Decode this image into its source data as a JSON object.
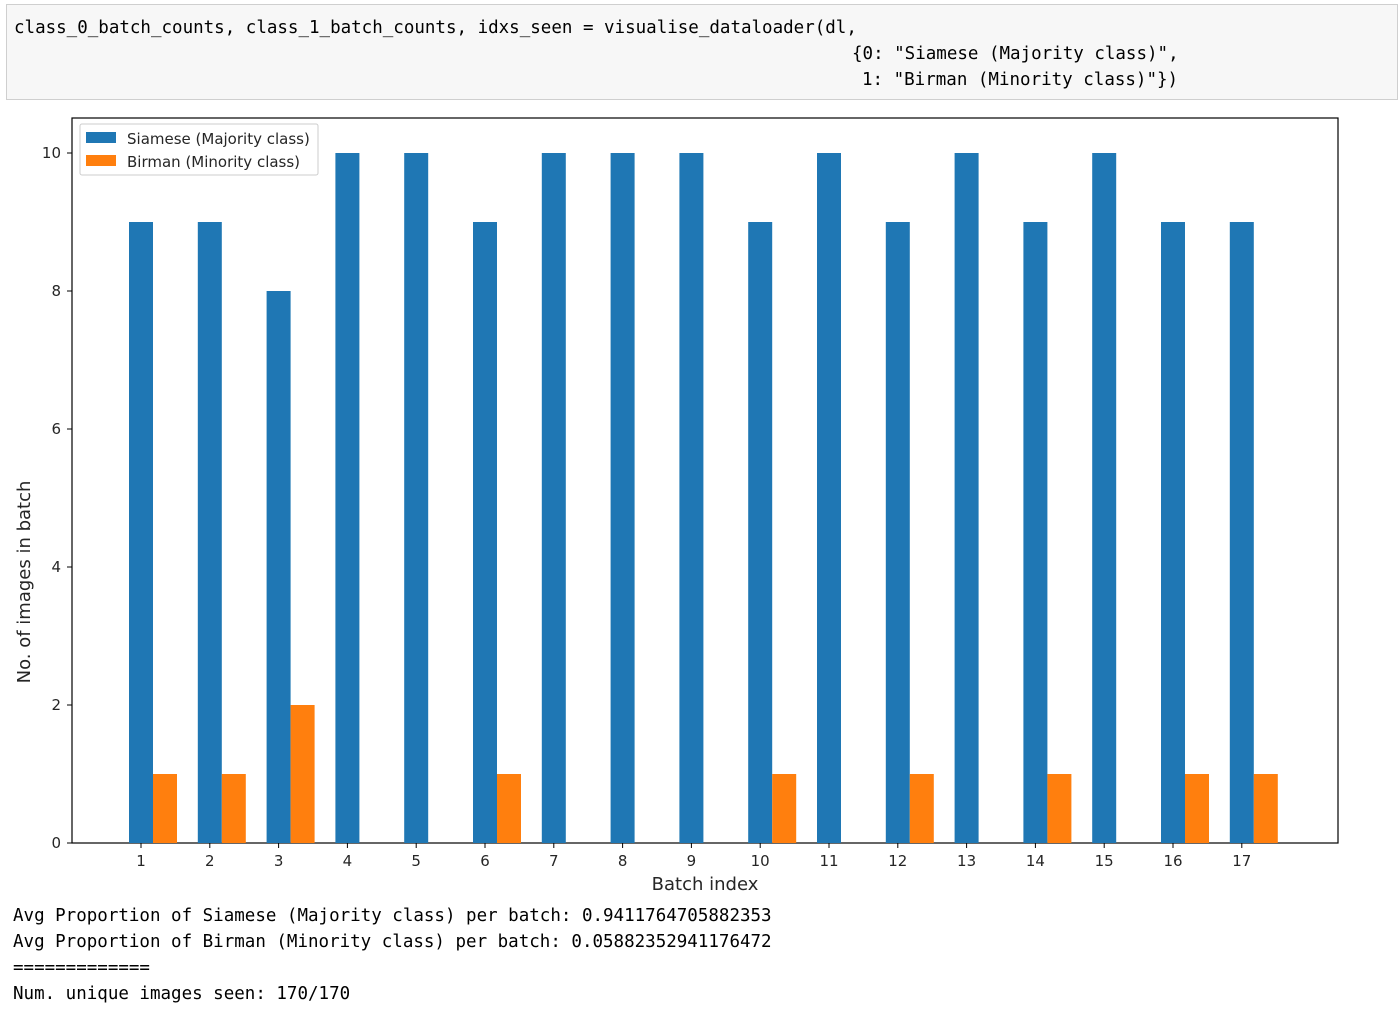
{
  "code_cell": {
    "line1": "class_0_batch_counts, class_1_batch_counts, idxs_seen = visualise_dataloader(dl,",
    "line2": "{0: \"Siamese (Majority class)\",",
    "line3": "1: \"Birman (Minority class)\"})"
  },
  "output": {
    "line1": "Avg Proportion of Siamese (Majority class) per batch: 0.9411764705882353",
    "line2": "Avg Proportion of Birman (Minority class) per batch: 0.05882352941176472",
    "line3": "=============",
    "line4": "Num. unique images seen: 170/170"
  },
  "colors": {
    "majority": "#1f77b4",
    "minority": "#ff7f0e"
  },
  "chart_data": {
    "type": "bar",
    "title": "",
    "xlabel": "Batch index",
    "ylabel": "No. of images in batch",
    "categories": [
      "1",
      "2",
      "3",
      "4",
      "5",
      "6",
      "7",
      "8",
      "9",
      "10",
      "11",
      "12",
      "13",
      "14",
      "15",
      "16",
      "17"
    ],
    "series": [
      {
        "name": "Siamese (Majority class)",
        "values": [
          9,
          9,
          8,
          10,
          10,
          9,
          10,
          10,
          10,
          9,
          10,
          9,
          10,
          9,
          10,
          9,
          9
        ]
      },
      {
        "name": "Birman (Minority class)",
        "values": [
          1,
          1,
          2,
          0,
          0,
          1,
          0,
          0,
          0,
          1,
          0,
          1,
          0,
          1,
          0,
          1,
          1
        ]
      }
    ],
    "yticks": [
      0,
      2,
      4,
      6,
      8,
      10
    ],
    "ylim": [
      0,
      10.5
    ],
    "grid": false,
    "legend_position": "upper-left"
  }
}
